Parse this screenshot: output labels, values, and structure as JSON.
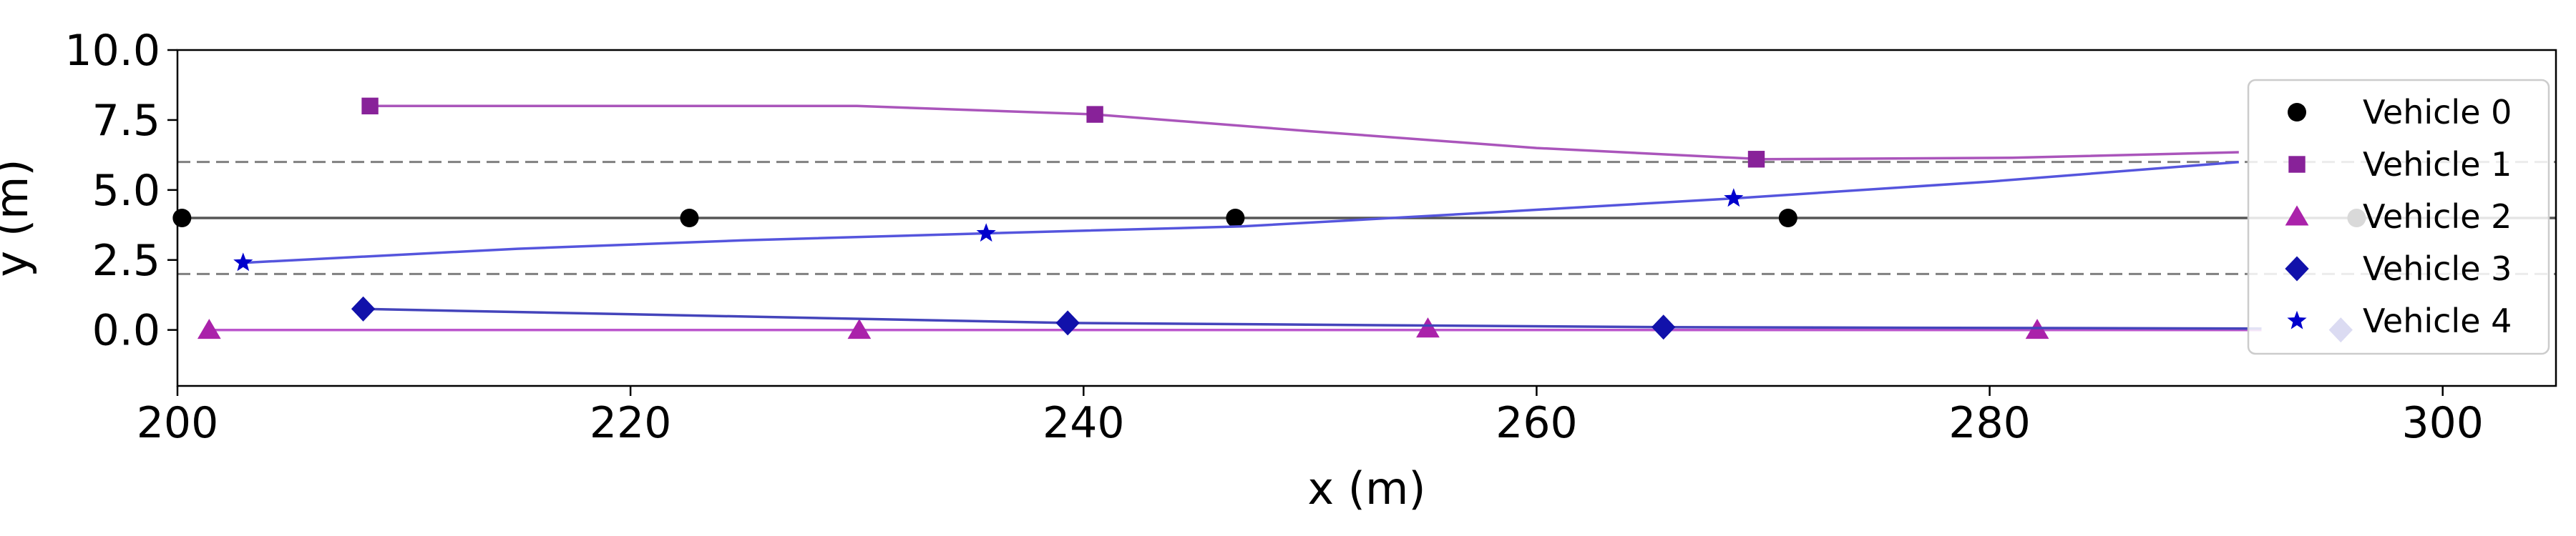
{
  "chart_data": {
    "type": "line",
    "title": "",
    "xlabel": "x (m)",
    "ylabel": "y (m)",
    "xlim": [
      200,
      305
    ],
    "ylim": [
      -2,
      10
    ],
    "x_ticks": [
      200,
      220,
      240,
      260,
      280,
      300
    ],
    "y_ticks": [
      0.0,
      2.5,
      5.0,
      7.5,
      10.0
    ],
    "x_tick_labels": [
      "200",
      "220",
      "240",
      "260",
      "280",
      "300"
    ],
    "y_tick_labels": [
      "0.0",
      "2.5",
      "5.0",
      "7.5",
      "10.0"
    ],
    "grid": false,
    "reference_lines": [
      {
        "y": 2.0,
        "style": "dashed",
        "color": "#808080"
      },
      {
        "y": 6.0,
        "style": "dashed",
        "color": "#808080"
      }
    ],
    "legend": {
      "placement": "right"
    },
    "series": [
      {
        "name": "Vehicle 0",
        "color": "#000000",
        "line_color": "#555555",
        "marker": "circle",
        "line": [
          [
            200,
            4.0
          ],
          [
            305,
            4.0
          ]
        ],
        "markers": [
          [
            200.2,
            4.0
          ],
          [
            222.6,
            4.0
          ],
          [
            246.7,
            4.0
          ],
          [
            271.1,
            4.0
          ],
          [
            296.2,
            4.0
          ]
        ]
      },
      {
        "name": "Vehicle 1",
        "color": "#882299",
        "line_color": "#aa55bb",
        "marker": "square",
        "line": [
          [
            208.5,
            8.0
          ],
          [
            230,
            8.0
          ],
          [
            240.5,
            7.7
          ],
          [
            250,
            7.1
          ],
          [
            260,
            6.5
          ],
          [
            270,
            6.1
          ],
          [
            281,
            6.15
          ],
          [
            291,
            6.35
          ]
        ],
        "markers": [
          [
            208.5,
            8.0
          ],
          [
            240.5,
            7.7
          ],
          [
            269.7,
            6.1
          ]
        ]
      },
      {
        "name": "Vehicle 2",
        "color": "#aa22aa",
        "line_color": "#bb55cc",
        "marker": "triangle",
        "line": [
          [
            201.4,
            0.0
          ],
          [
            292,
            0.0
          ]
        ],
        "markers": [
          [
            201.4,
            0.0
          ],
          [
            230.1,
            0.0
          ],
          [
            255.2,
            0.05
          ],
          [
            282.1,
            0.0
          ]
        ]
      },
      {
        "name": "Vehicle 3",
        "color": "#1111aa",
        "line_color": "#4444bb",
        "marker": "diamond",
        "line": [
          [
            208.2,
            0.75
          ],
          [
            239.3,
            0.25
          ],
          [
            265.6,
            0.1
          ],
          [
            292,
            0.05
          ]
        ],
        "markers": [
          [
            208.2,
            0.75
          ],
          [
            239.3,
            0.25
          ],
          [
            265.6,
            0.1
          ],
          [
            295.5,
            0.0
          ]
        ]
      },
      {
        "name": "Vehicle 4",
        "color": "#0000cc",
        "line_color": "#5555dd",
        "marker": "star",
        "line": [
          [
            202.9,
            2.4
          ],
          [
            215,
            2.9
          ],
          [
            225,
            3.2
          ],
          [
            235.7,
            3.45
          ],
          [
            247,
            3.7
          ],
          [
            258,
            4.2
          ],
          [
            268.7,
            4.7
          ],
          [
            280,
            5.3
          ],
          [
            291,
            6.0
          ]
        ],
        "markers": [
          [
            202.9,
            2.4
          ],
          [
            235.7,
            3.45
          ],
          [
            268.7,
            4.7
          ]
        ]
      }
    ]
  }
}
